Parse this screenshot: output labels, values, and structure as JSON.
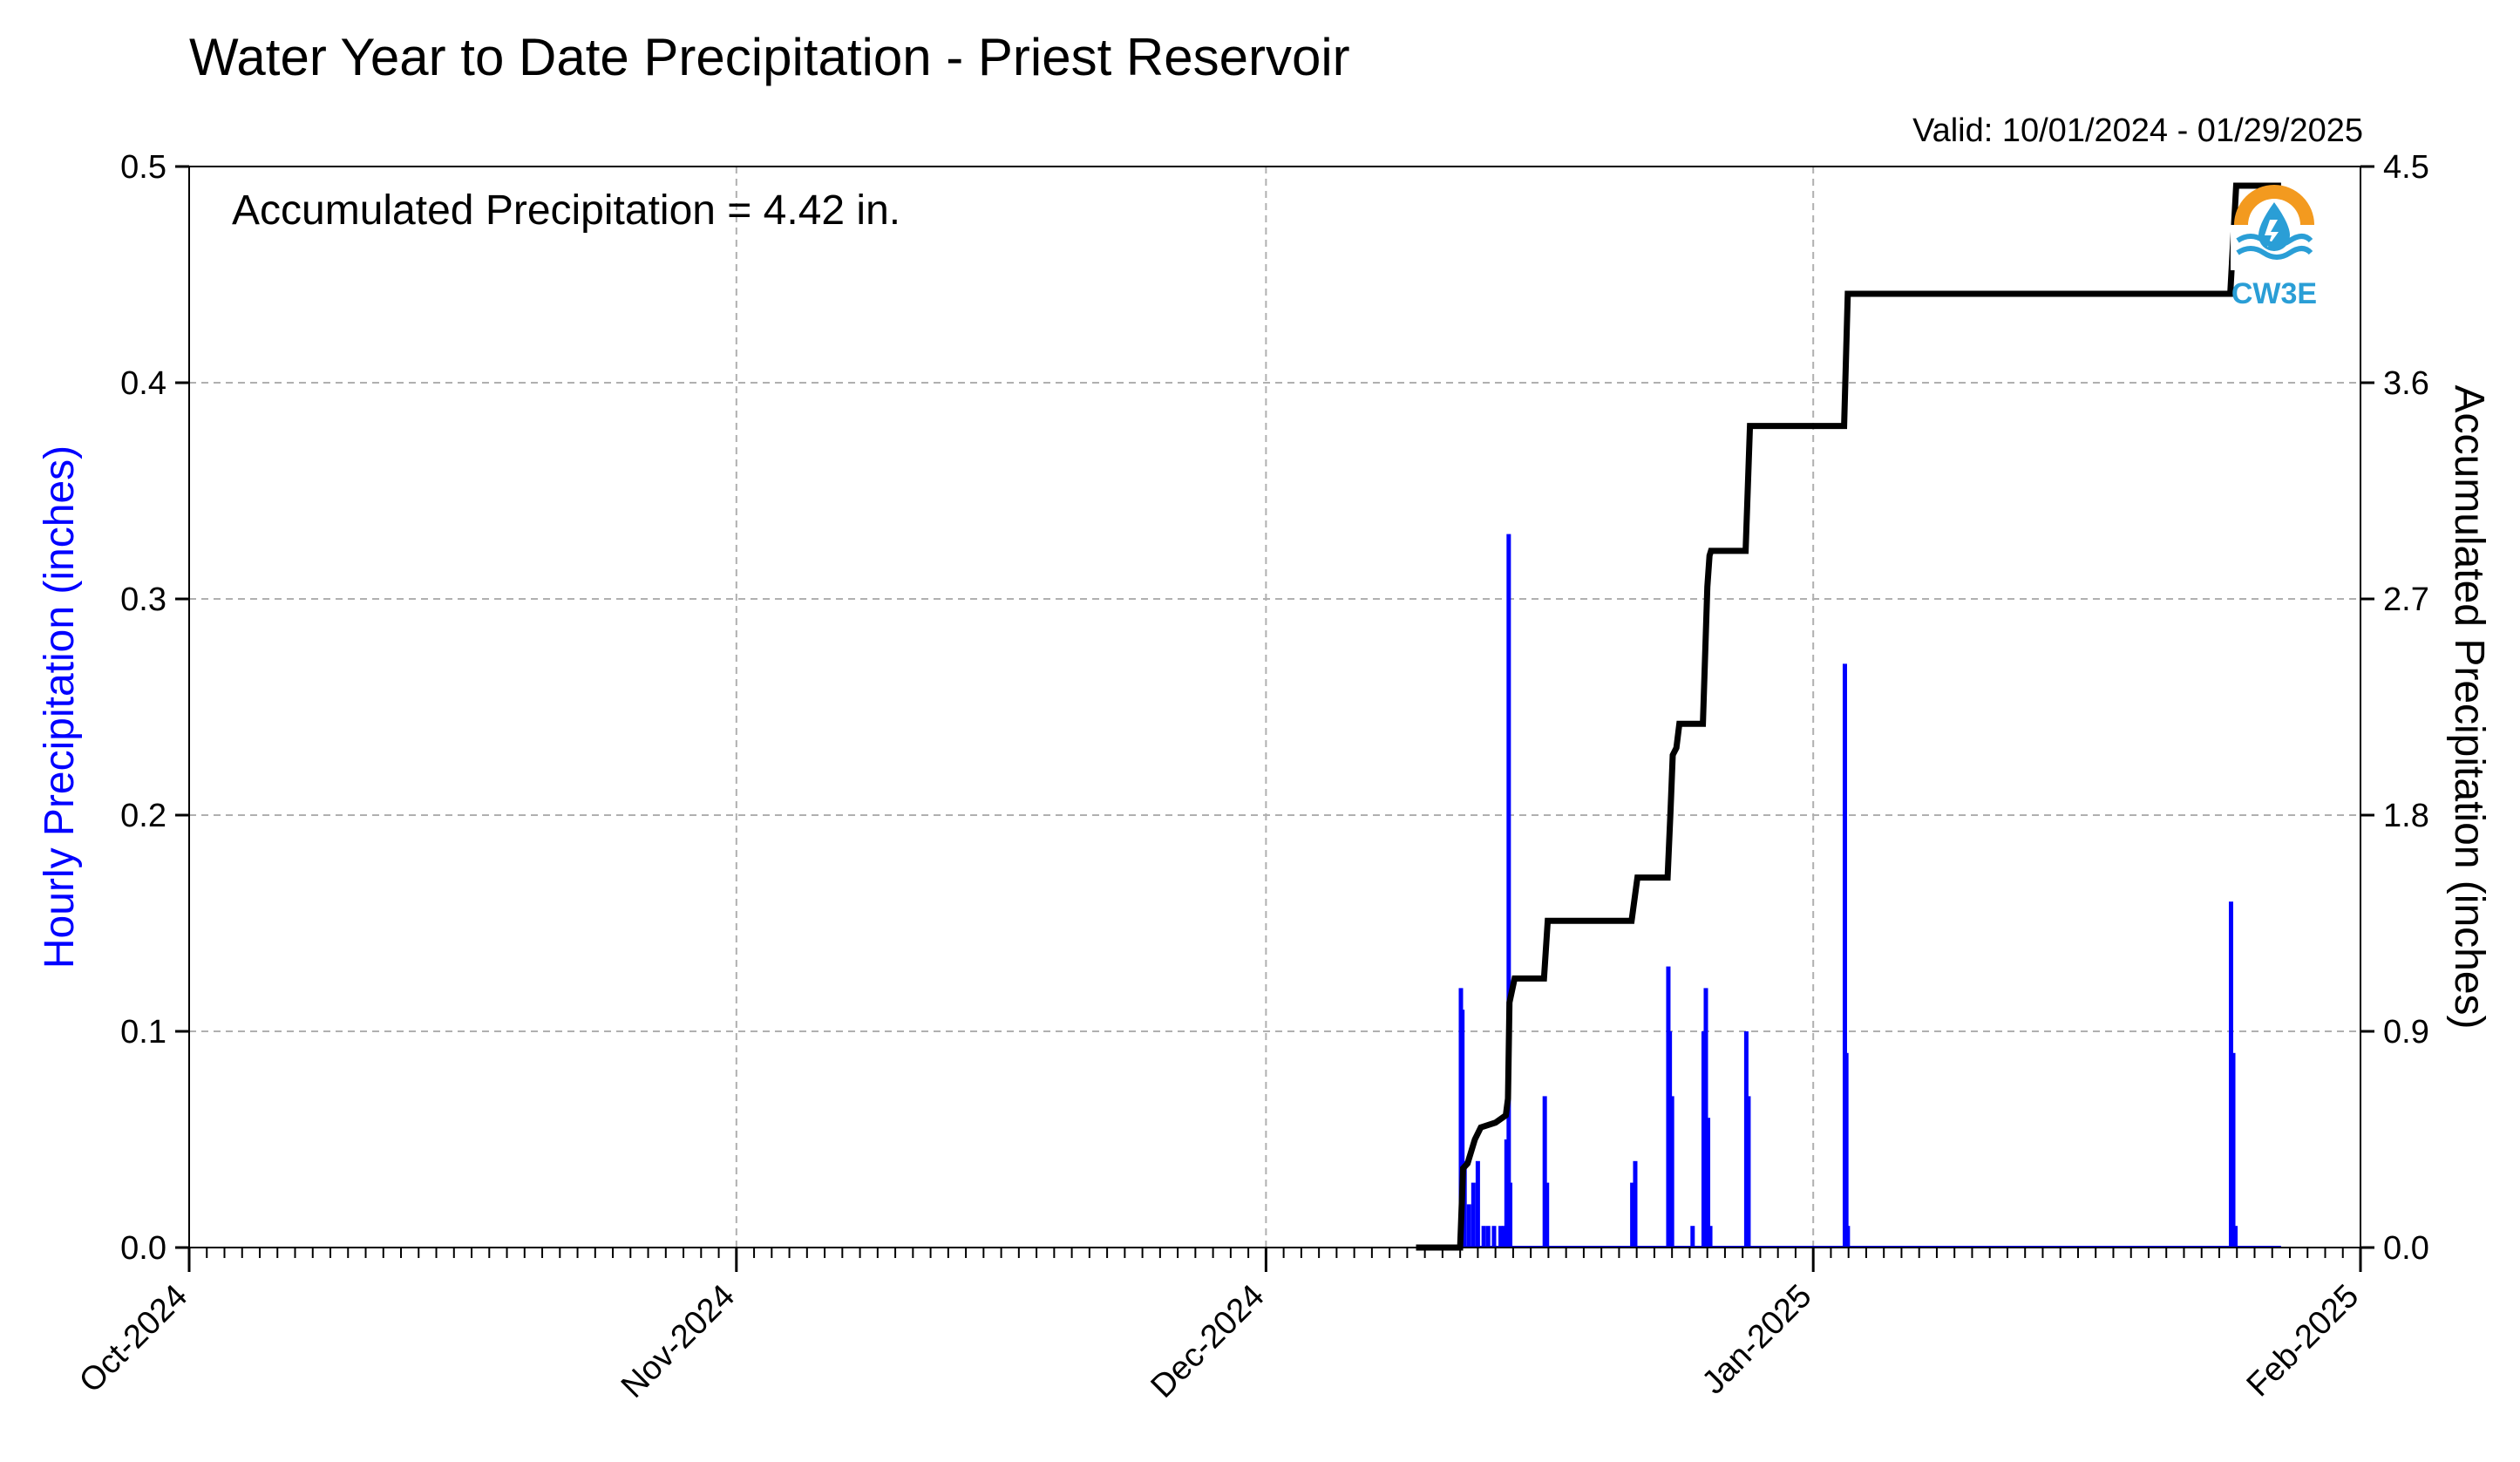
{
  "chart_data": {
    "type": "bar",
    "title": "Water Year to Date Precipitation - Priest Reservoir",
    "valid_label": "Valid: 10/01/2024 - 01/29/2025",
    "annotation": "Accumulated Precipitation = 4.42 in.",
    "ylabel_left": "Hourly Precipitation (inches)",
    "ylabel_right": "Accumulated Precipitation (inches)",
    "xlim": [
      "2024-10-01",
      "2025-02-01"
    ],
    "ylim_left": [
      0,
      0.5
    ],
    "ylim_right": [
      0,
      4.5
    ],
    "x_tick_labels": [
      "Oct-2024",
      "Nov-2024",
      "Dec-2024",
      "Jan-2025",
      "Feb-2025"
    ],
    "y_left_tick_labels": [
      "0.0",
      "0.1",
      "0.2",
      "0.3",
      "0.4",
      "0.5"
    ],
    "y_right_tick_labels": [
      "0.0",
      "0.9",
      "1.8",
      "2.7",
      "3.6",
      "4.5"
    ],
    "grid": true,
    "logo_text": "CW3E",
    "colors": {
      "hourly": "#0000ff",
      "accumulated": "#000000",
      "grid": "#b0b0b0",
      "logo_orange": "#f39a1f",
      "logo_blue": "#2a9ed6"
    },
    "series": [
      {
        "name": "Hourly Precipitation",
        "color": "#0000ff",
        "points": [
          [
            "2024-12-12T01:00",
            0.12
          ],
          [
            "2024-12-12T03:00",
            0.11
          ],
          [
            "2024-12-12T06:00",
            0.04
          ],
          [
            "2024-12-12T12:00",
            0.02
          ],
          [
            "2024-12-12T18:00",
            0.03
          ],
          [
            "2024-12-13T00:00",
            0.04
          ],
          [
            "2024-12-13T08:00",
            0.01
          ],
          [
            "2024-12-13T14:00",
            0.01
          ],
          [
            "2024-12-13T22:00",
            0.01
          ],
          [
            "2024-12-14T07:00",
            0.01
          ],
          [
            "2024-12-14T12:00",
            0.01
          ],
          [
            "2024-12-14T15:00",
            0.05
          ],
          [
            "2024-12-14T18:00",
            0.33
          ],
          [
            "2024-12-14T20:00",
            0.03
          ],
          [
            "2024-12-16T19:00",
            0.07
          ],
          [
            "2024-12-16T22:00",
            0.03
          ],
          [
            "2024-12-21T18:00",
            0.03
          ],
          [
            "2024-12-21T22:00",
            0.04
          ],
          [
            "2024-12-23T19:00",
            0.13
          ],
          [
            "2024-12-23T21:00",
            0.1
          ],
          [
            "2024-12-24T00:00",
            0.07
          ],
          [
            "2024-12-25T04:00",
            0.01
          ],
          [
            "2024-12-25T19:00",
            0.1
          ],
          [
            "2024-12-25T22:00",
            0.12
          ],
          [
            "2024-12-26T01:00",
            0.06
          ],
          [
            "2024-12-26T04:00",
            0.01
          ],
          [
            "2024-12-28T05:00",
            0.1
          ],
          [
            "2024-12-28T08:00",
            0.07
          ],
          [
            "2025-01-02T19:00",
            0.27
          ],
          [
            "2025-01-02T21:00",
            0.09
          ],
          [
            "2025-01-02T23:00",
            0.01
          ],
          [
            "2025-01-24T16:00",
            0.16
          ],
          [
            "2025-01-24T19:00",
            0.09
          ],
          [
            "2025-01-24T22:00",
            0.01
          ]
        ]
      },
      {
        "name": "Accumulated Precipitation",
        "color": "#000000",
        "points": [
          [
            "2024-12-09T12:00",
            0
          ],
          [
            "2024-12-12T00:00",
            0
          ],
          [
            "2024-12-12T04:00",
            0.33
          ],
          [
            "2024-12-12T10:00",
            0.35
          ],
          [
            "2024-12-12T20:00",
            0.45
          ],
          [
            "2024-12-13T04:00",
            0.5
          ],
          [
            "2024-12-14T00:00",
            0.52
          ],
          [
            "2024-12-14T14:00",
            0.55
          ],
          [
            "2024-12-14T17:00",
            0.62
          ],
          [
            "2024-12-14T19:00",
            1.02
          ],
          [
            "2024-12-15T02:00",
            1.12
          ],
          [
            "2024-12-16T18:00",
            1.12
          ],
          [
            "2024-12-16T23:00",
            1.36
          ],
          [
            "2024-12-21T17:00",
            1.36
          ],
          [
            "2024-12-22T01:00",
            1.54
          ],
          [
            "2024-12-23T18:00",
            1.54
          ],
          [
            "2024-12-23T22:00",
            1.82
          ],
          [
            "2024-12-24T01:00",
            2.05
          ],
          [
            "2024-12-24T06:00",
            2.08
          ],
          [
            "2024-12-24T10:00",
            2.18
          ],
          [
            "2024-12-25T18:00",
            2.18
          ],
          [
            "2024-12-26T00:00",
            2.75
          ],
          [
            "2024-12-26T03:00",
            2.88
          ],
          [
            "2024-12-26T05:00",
            2.9
          ],
          [
            "2024-12-28T04:00",
            2.9
          ],
          [
            "2024-12-28T10:00",
            3.42
          ],
          [
            "2025-01-02T18:00",
            3.42
          ],
          [
            "2025-01-02T23:00",
            3.97
          ],
          [
            "2025-01-24T15:00",
            3.97
          ],
          [
            "2025-01-24T23:00",
            4.42
          ],
          [
            "2025-01-27T12:00",
            4.42
          ]
        ]
      }
    ]
  }
}
